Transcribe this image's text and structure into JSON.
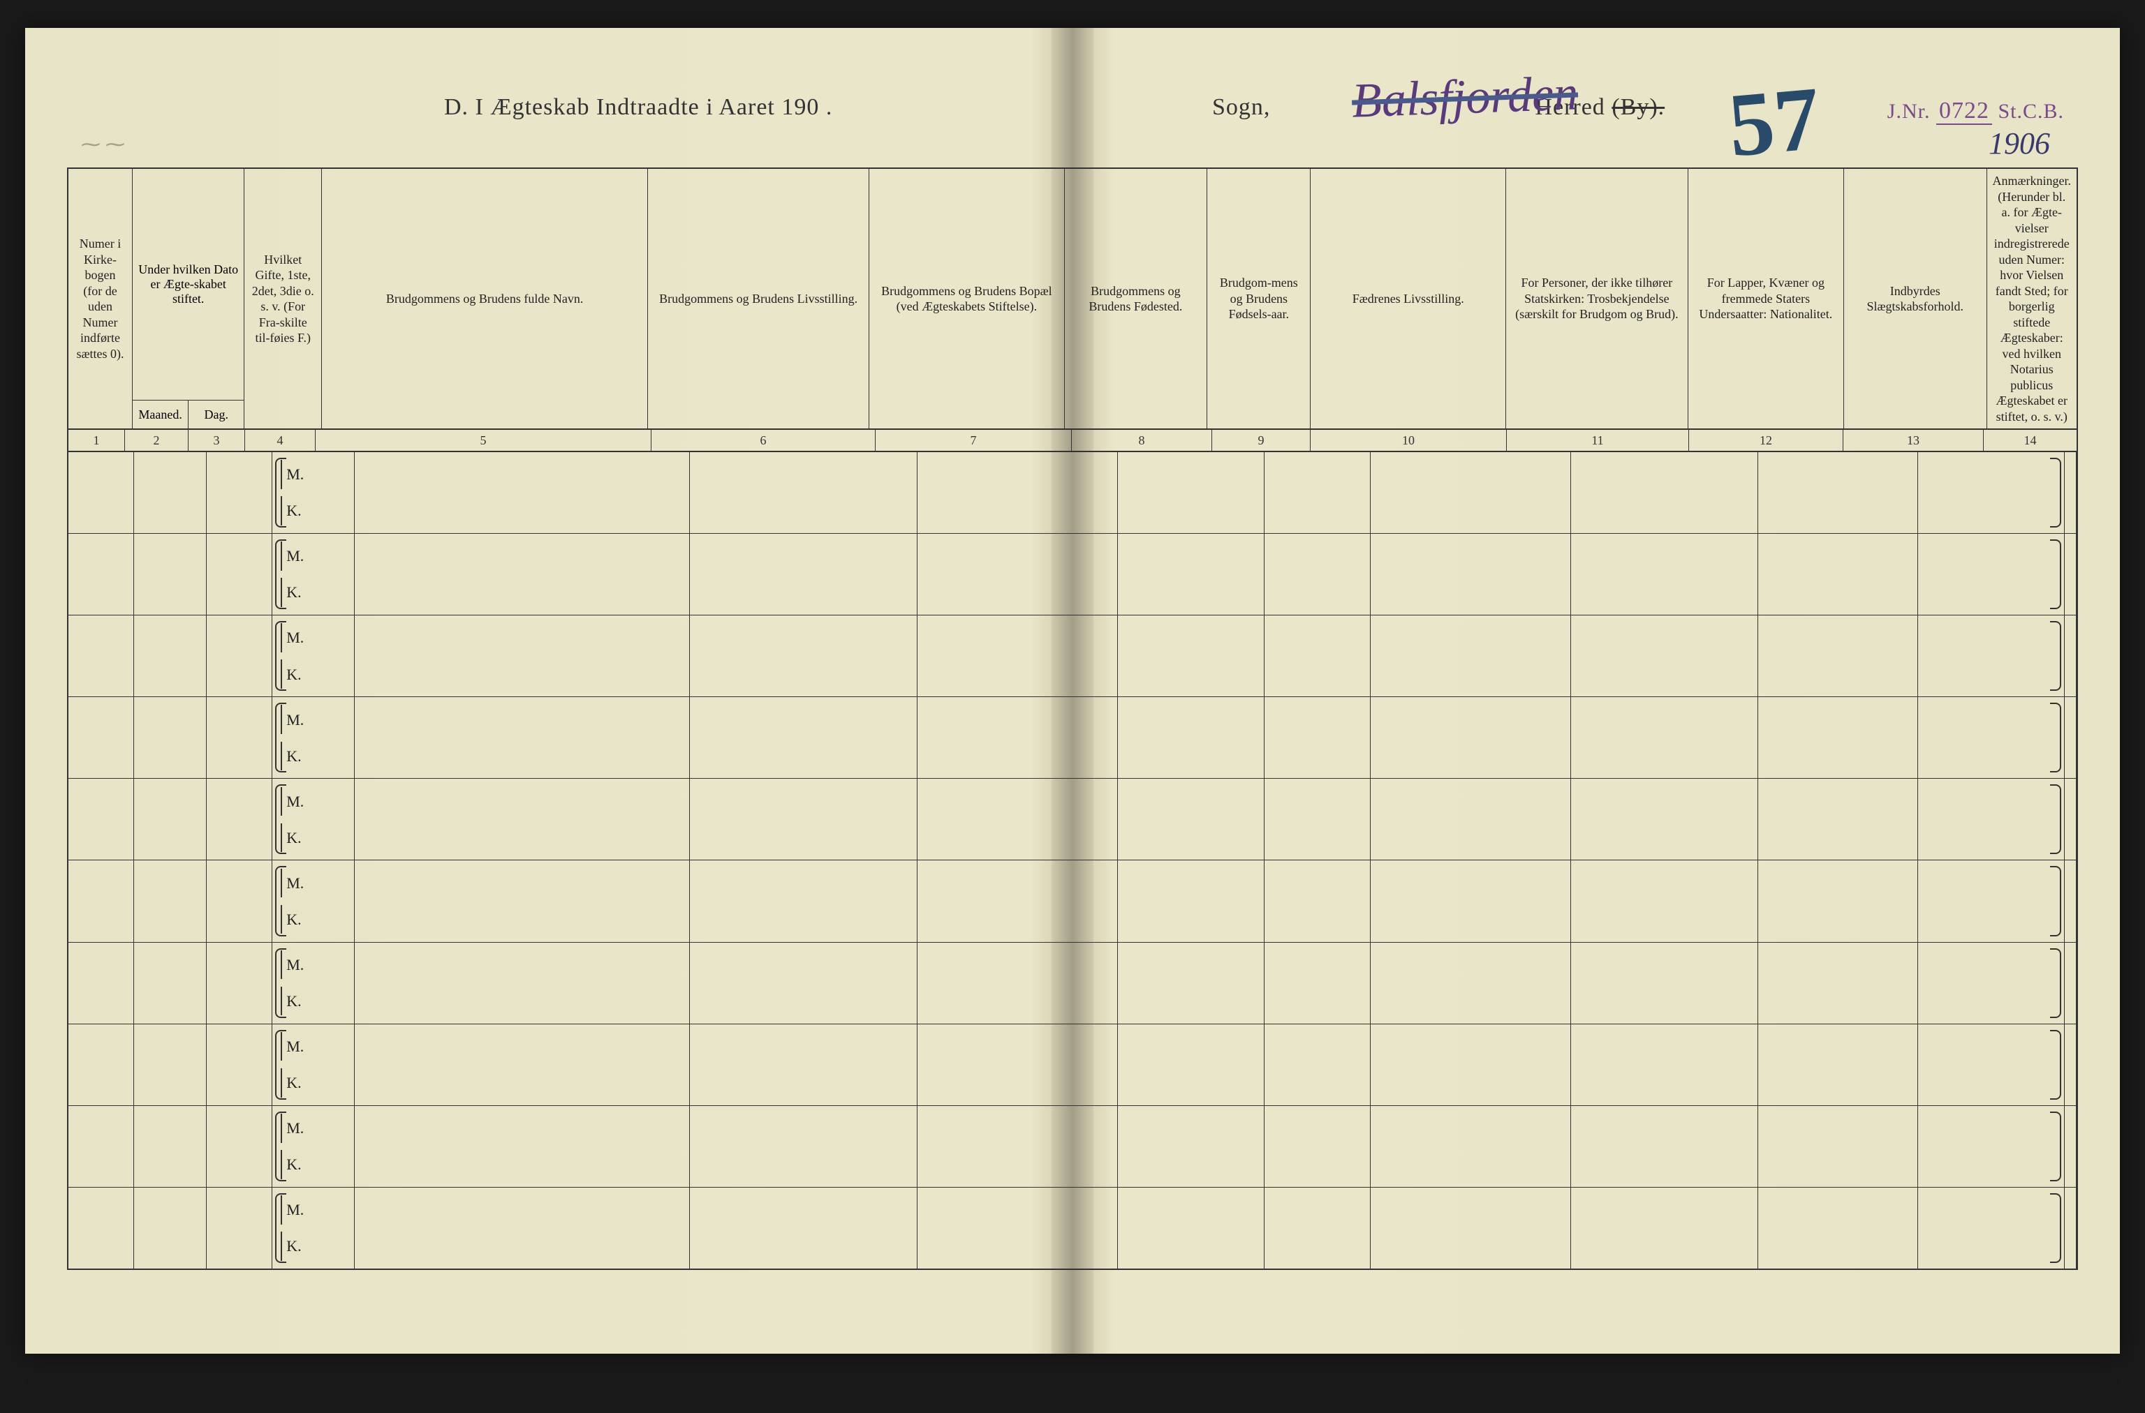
{
  "page": {
    "background": "#e8e4c8",
    "spine_shadow": "#d8d2b4",
    "border_color": "#333333",
    "header_fontsize": 18,
    "row_count": 10
  },
  "header": {
    "title_left": "D.  I Ægteskab Indtraadte i Aaret 190   .",
    "title_right_pre": "Sogn,",
    "title_right_mid": "Herred",
    "title_right_by": "(By).",
    "handwritten_sogn": "Balsfjorden",
    "handwritten_number": "57",
    "stamp_jnr_label": "J.Nr.",
    "stamp_jnr_number": "0722",
    "stamp_jnr_suffix": "St.C.B.",
    "stamp_year": "1906"
  },
  "columns": [
    {
      "n": "1",
      "label": "Numer i Kirke-bogen (for de uden Numer indførte sættes 0)."
    },
    {
      "n": "2-3",
      "label": "Under hvilken Dato er Ægte-skabet stiftet.",
      "sub": [
        "Maaned.",
        "Dag."
      ]
    },
    {
      "n": "4",
      "label": "Hvilket Gifte, 1ste, 2det, 3die o. s. v. (For Fra-skilte til-føies F.)"
    },
    {
      "n": "5",
      "label": "Brudgommens og Brudens fulde Navn."
    },
    {
      "n": "6",
      "label": "Brudgommens og Brudens Livsstilling."
    },
    {
      "n": "7",
      "label": "Brudgommens og Brudens Bopæl (ved Ægteskabets Stiftelse)."
    },
    {
      "n": "8",
      "label": "Brudgommens og Brudens Fødested."
    },
    {
      "n": "9",
      "label": "Brudgom-mens og Brudens Fødsels-aar."
    },
    {
      "n": "10",
      "label": "Fædrenes Livsstilling."
    },
    {
      "n": "11",
      "label": "For Personer, der ikke tilhører Statskirken: Trosbekjendelse (særskilt for Brudgom og Brud)."
    },
    {
      "n": "12",
      "label": "For Lapper, Kvæner og fremmede Staters Undersaatter: Nationalitet."
    },
    {
      "n": "13",
      "label": "Indbyrdes Slægtskabsforhold."
    },
    {
      "n": "14",
      "label": "Anmærkninger. (Herunder bl. a. for Ægte-vielser indregistrerede uden Numer: hvor Vielsen fandt Sted; for borgerlig stiftede Ægteskaber: ved hvilken Notarius publicus Ægteskabet er stiftet, o. s. v.)"
    }
  ],
  "colnums": [
    "1",
    "2",
    "3",
    "4",
    "5",
    "6",
    "7",
    "8",
    "9",
    "10",
    "11",
    "12",
    "13",
    "14"
  ],
  "mk": {
    "m": "M.",
    "k": "K."
  }
}
